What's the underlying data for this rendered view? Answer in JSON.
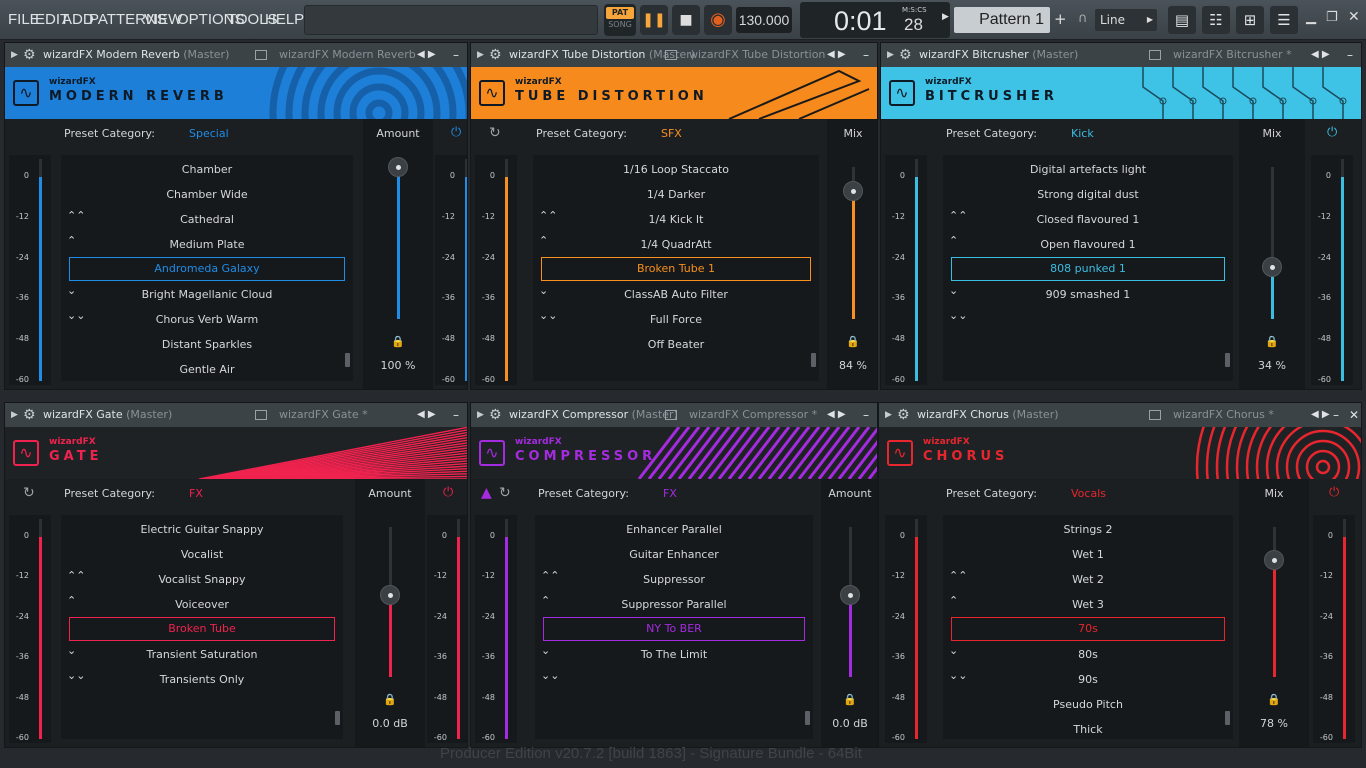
{
  "menu": [
    "FILE",
    "EDIT",
    "ADD",
    "PATTERNS",
    "VIEW",
    "OPTIONS",
    "TOOLS",
    "HELP"
  ],
  "transport": {
    "pat": "PAT",
    "song": "SONG",
    "tempo": "130.000",
    "time_main": "0:01",
    "time_sub": "28",
    "time_unit": "M:S:CS",
    "pattern": "Pattern 1",
    "snap": "Line"
  },
  "status_line": "Producer Edition v20.7.2 [build 1863] - Signature Bundle - 64Bit",
  "plugins": [
    {
      "id": "reverb",
      "title": "wizardFX Modern Reverb",
      "master": "(Master)",
      "dup": "wizardFX Modern Reverb",
      "brand": "wizardFX",
      "name": "MODERN REVERB",
      "accent": "#1f8ce6",
      "header_bg": "#1d7fd8",
      "cat_label": "Preset Category:",
      "category": "Special",
      "knob_label": "Amount",
      "knob_value": "100 %",
      "level": 1.0,
      "items": [
        "Chamber",
        "Chamber Wide",
        "Cathedral",
        "Medium Plate",
        "Andromeda Galaxy",
        "Bright Magellanic Cloud",
        "Chorus Verb Warm",
        "Distant Sparkles",
        "Gentle Air"
      ],
      "selected": 4,
      "meter_labels": [
        "0",
        "-12",
        "-24",
        "-36",
        "-48",
        "-60"
      ]
    },
    {
      "id": "tube",
      "title": "wizardFX Tube Distortion",
      "master": "(Master)",
      "dup": "wizardFX Tube Distortion *",
      "brand": "wizardFX",
      "name": "TUBE DISTORTION",
      "accent": "#f7901e",
      "header_bg": "#f78a1d",
      "cat_label": "Preset Category:",
      "category": "SFX",
      "knob_label": "Mix",
      "knob_value": "84 %",
      "level": 0.84,
      "items": [
        "1/16 Loop Staccato",
        "1/4 Darker",
        "1/4 Kick It",
        "1/4 QuadrAtt",
        "Broken Tube 1",
        "ClassAB Auto Filter",
        "Full Force",
        "Off Beater"
      ],
      "selected": 4,
      "meter_labels": [
        "0",
        "-12",
        "-24",
        "-36",
        "-48",
        "-60"
      ]
    },
    {
      "id": "bitcrusher",
      "title": "wizardFX Bitcrusher",
      "master": "(Master)",
      "dup": "wizardFX Bitcrusher *",
      "brand": "wizardFX",
      "name": "BITCRUSHER",
      "accent": "#3bbde0",
      "header_bg": "#3ec3e6",
      "cat_label": "Preset Category:",
      "category": "Kick",
      "knob_label": "Mix",
      "knob_value": "34 %",
      "level": 0.34,
      "items": [
        "Digital artefacts light",
        "Strong digital dust",
        "Closed flavoured 1",
        "Open flavoured 1",
        "808 punked 1",
        "909 smashed 1"
      ],
      "selected": 4,
      "meter_labels": [
        "0",
        "-12",
        "-24",
        "-36",
        "-48",
        "-60"
      ]
    },
    {
      "id": "gate",
      "title": "wizardFX Gate",
      "master": "(Master)",
      "dup": "wizardFX Gate *",
      "brand": "wizardFX",
      "name": "GATE",
      "accent": "#f0224e",
      "header_bg": "#1f2225",
      "cat_label": "Preset Category:",
      "category": "FX",
      "knob_label": "Amount",
      "knob_value": "0.0 dB",
      "level": 0.55,
      "items": [
        "Electric Guitar Snappy",
        "Vocalist",
        "Vocalist Snappy",
        "Voiceover",
        "Broken Tube",
        "Transient Saturation",
        "Transients Only"
      ],
      "selected": 4,
      "meter_labels": [
        "0",
        "-12",
        "-24",
        "-36",
        "-48",
        "-60"
      ]
    },
    {
      "id": "compressor",
      "title": "wizardFX Compressor",
      "master": "(Master)",
      "dup": "wizardFX Compressor *",
      "brand": "wizardFX",
      "name": "COMPRESSOR",
      "accent": "#a52be0",
      "header_bg": "#1f2225",
      "cat_label": "Preset Category:",
      "category": "FX",
      "knob_label": "Amount",
      "knob_value": "0.0 dB",
      "level": 0.55,
      "items": [
        "Enhancer Parallel",
        "Guitar Enhancer",
        "Suppressor",
        "Suppressor Parallel",
        "NY To BER",
        "To The Limit"
      ],
      "selected": 4,
      "meter_labels": [
        "0",
        "-12",
        "-24",
        "-36",
        "-48",
        "-60"
      ]
    },
    {
      "id": "chorus",
      "title": "wizardFX Chorus",
      "master": "(Master)",
      "dup": "wizardFX Chorus *",
      "brand": "wizardFX",
      "name": "CHORUS",
      "accent": "#e8262e",
      "header_bg": "#1f2225",
      "cat_label": "Preset Category:",
      "category": "Vocals",
      "knob_label": "Mix",
      "knob_value": "78 %",
      "level": 0.78,
      "items": [
        "Strings 2",
        "Wet 1",
        "Wet 2",
        "Wet 3",
        "70s",
        "80s",
        "90s",
        "Pseudo Pitch",
        "Thick"
      ],
      "selected": 4,
      "meter_labels": [
        "0",
        "-12",
        "-24",
        "-36",
        "-48",
        "-60"
      ]
    }
  ]
}
